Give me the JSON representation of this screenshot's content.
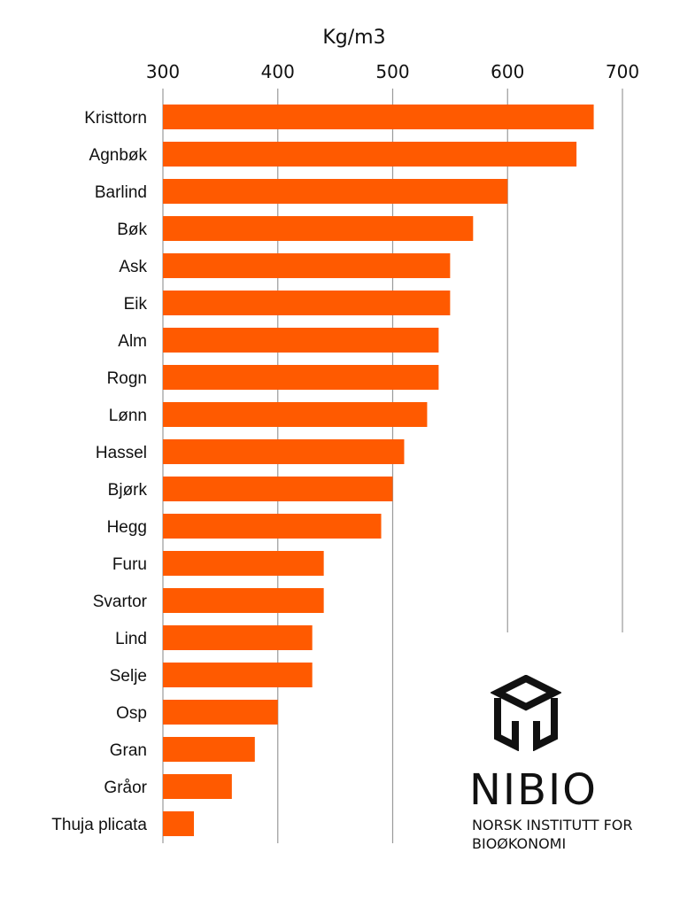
{
  "chart_data": {
    "type": "bar",
    "orientation": "horizontal",
    "title": "",
    "xlabel": "Kg/m3",
    "ylabel": "",
    "xlim": [
      300,
      700
    ],
    "xticks": [
      300,
      400,
      500,
      600,
      700
    ],
    "xaxis_position": "top",
    "grid": "vertical",
    "bar_color": "#ff5a00",
    "categories": [
      "Kristtorn",
      "Agnbøk",
      "Barlind",
      "Bøk",
      "Ask",
      "Eik",
      "Alm",
      "Rogn",
      "Lønn",
      "Hassel",
      "Bjørk",
      "Hegg",
      "Furu",
      "Svartor",
      "Lind",
      "Selje",
      "Osp",
      "Gran",
      "Gråor",
      "Thuja plicata"
    ],
    "values": [
      675,
      660,
      600,
      570,
      550,
      550,
      540,
      540,
      530,
      510,
      500,
      490,
      440,
      440,
      430,
      430,
      400,
      380,
      360,
      327
    ]
  },
  "logo": {
    "name": "NIBIO",
    "subtitle_line1": "NORSK INSTITUTT FOR",
    "subtitle_line2": "BIOØKONOMI"
  }
}
